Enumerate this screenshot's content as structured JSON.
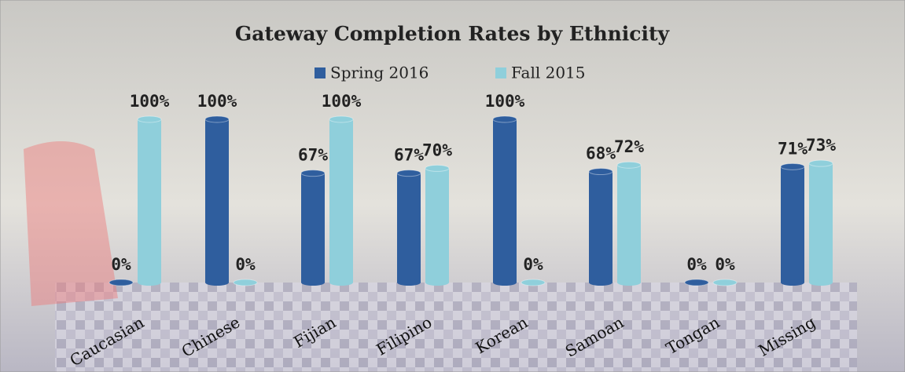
{
  "chart_data": {
    "type": "bar",
    "title": "Gateway Completion Rates by Ethnicity",
    "categories": [
      "Caucasian",
      "Chinese",
      "Fijian",
      "Filipino",
      "Korean",
      "Samoan",
      "Tongan",
      "Missing"
    ],
    "series": [
      {
        "name": "Spring 2016",
        "color": "#2f5e9e",
        "values": [
          0,
          100,
          67,
          67,
          100,
          68,
          0,
          71
        ],
        "value_labels": [
          "0%",
          "100%",
          "67%",
          "67%",
          "100%",
          "68%",
          "0%",
          "71%"
        ]
      },
      {
        "name": "Fall 2015",
        "color": "#8fcfdb",
        "values": [
          100,
          0,
          100,
          70,
          0,
          72,
          0,
          73
        ],
        "value_labels": [
          "100%",
          "0%",
          "100%",
          "70%",
          "0%",
          "72%",
          "0%",
          "73%"
        ]
      }
    ],
    "legend": "top"
  }
}
